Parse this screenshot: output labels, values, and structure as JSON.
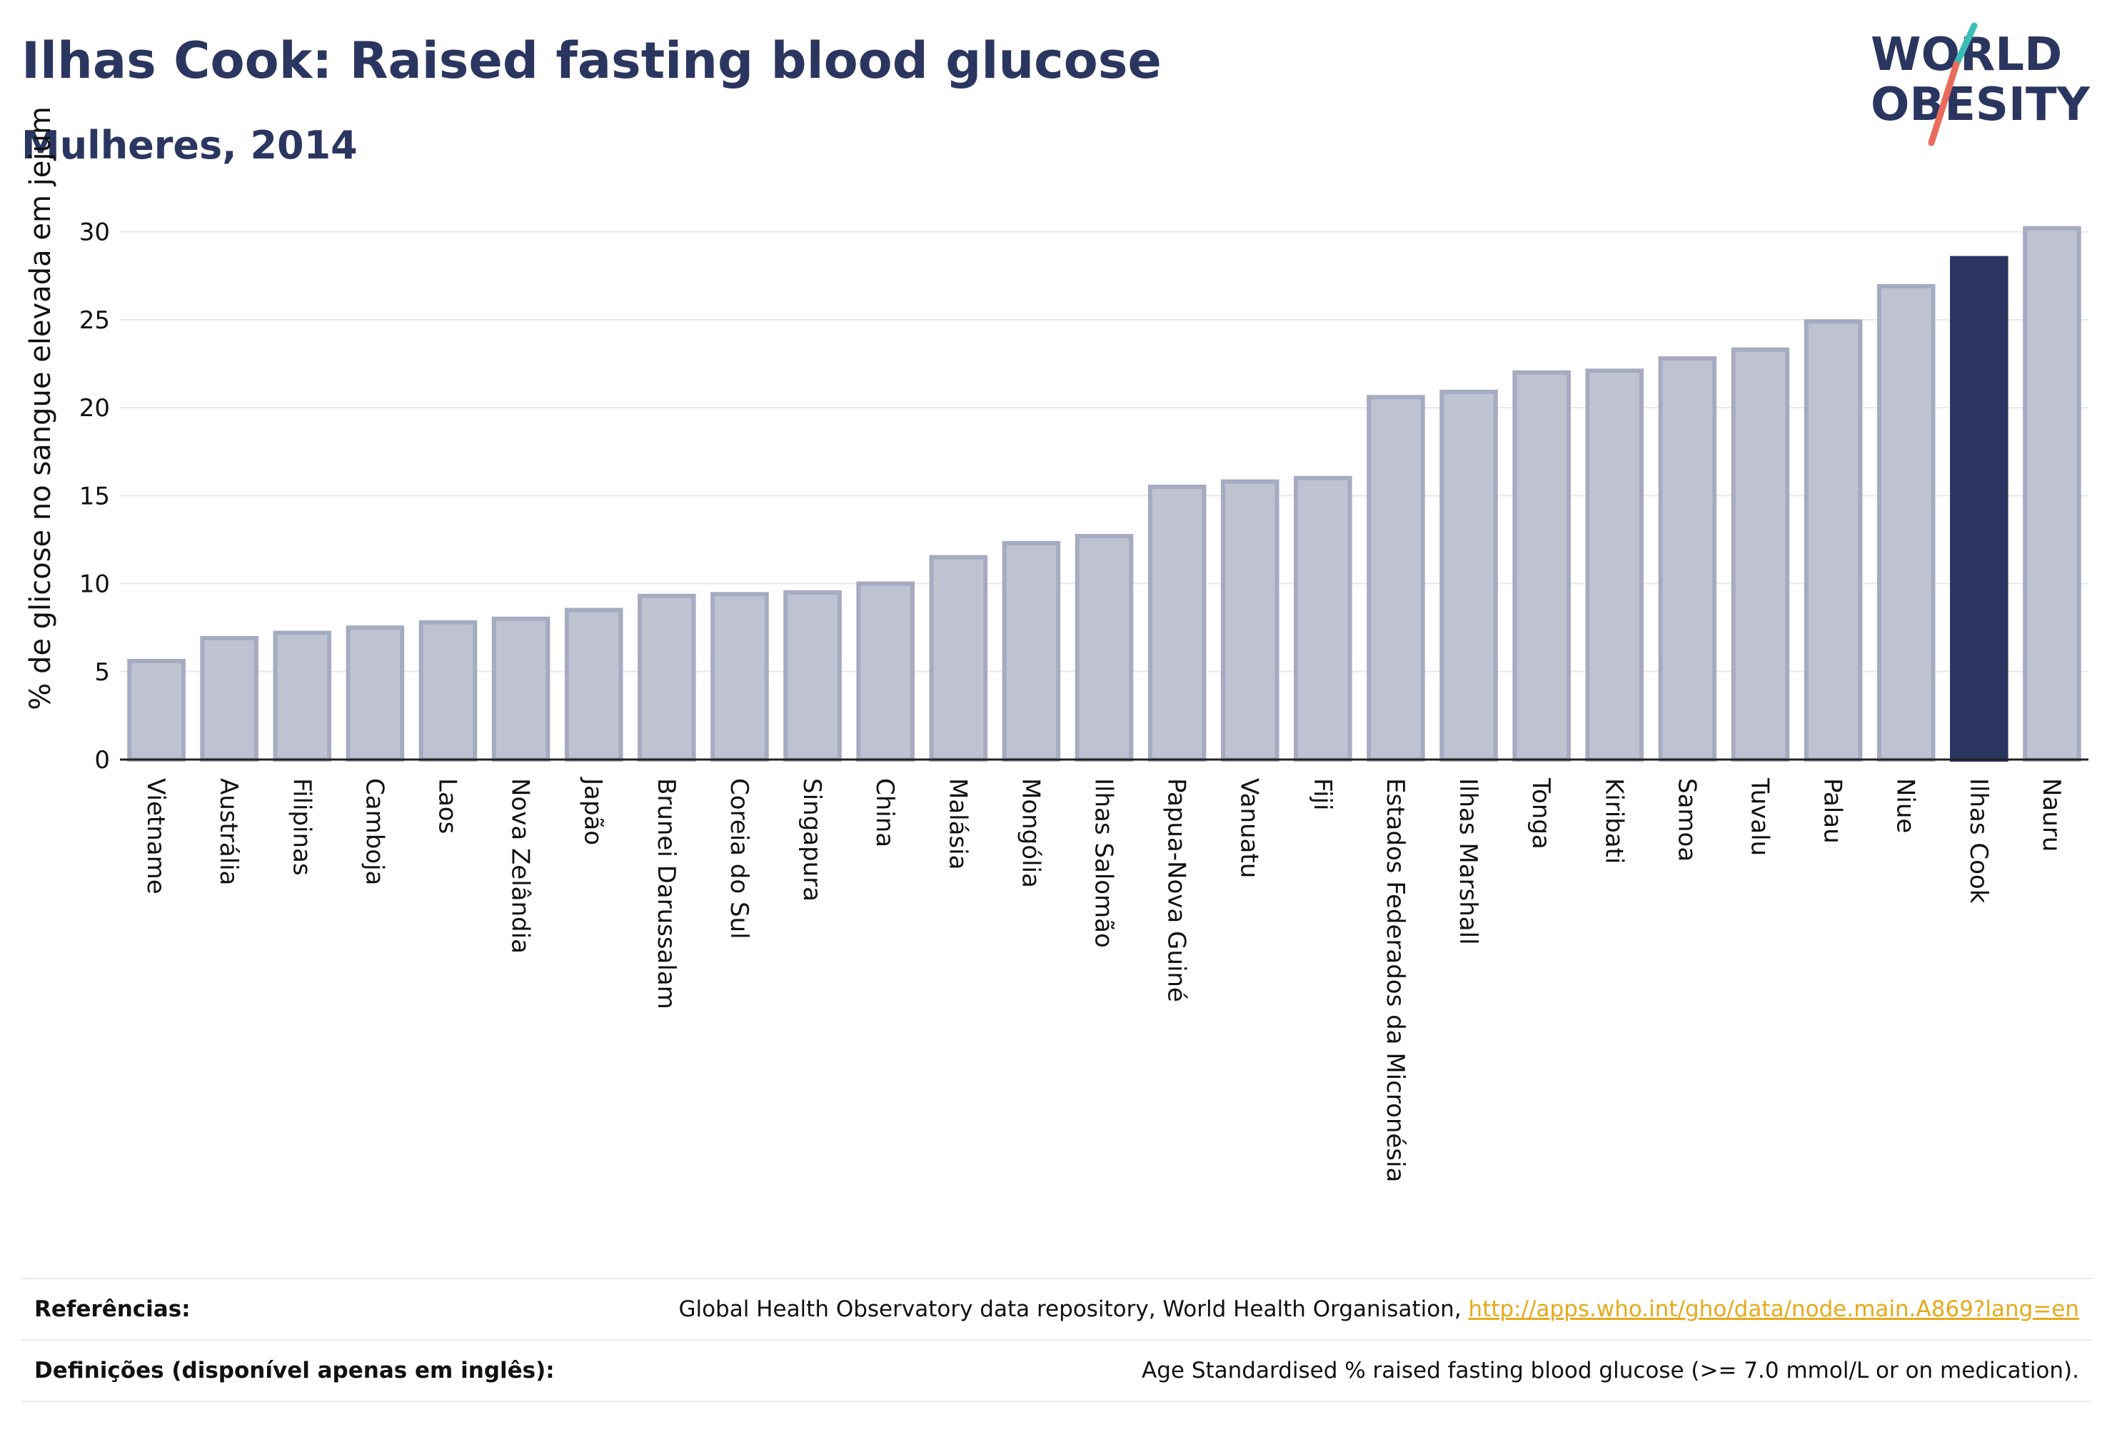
{
  "header": {
    "title": "Ilhas Cook: Raised fasting blood glucose",
    "subtitle": "Mulheres, 2014"
  },
  "logo": {
    "line1": "WORLD",
    "line2": "OBESITY"
  },
  "colors": {
    "bar_fill": "#bfc3d1",
    "bar_stroke": "#a5abc0",
    "highlight": "#2b3660",
    "grid": "#e6e8ef",
    "text": "#111111",
    "logo_teal": "#3bbfb5",
    "logo_coral": "#ea6b5b",
    "link": "#e7a91b"
  },
  "chart_data": {
    "type": "bar",
    "ylabel": "% de glicose no sangue elevada em jejum",
    "ylim": [
      0,
      31
    ],
    "yticks": [
      0,
      5,
      10,
      15,
      20,
      25,
      30
    ],
    "grid": true,
    "highlight_category": "Ilhas Cook",
    "categories": [
      "Vietname",
      "Austrália",
      "Filipinas",
      "Camboja",
      "Laos",
      "Nova Zelândia",
      "Japão",
      "Brunei Darussalam",
      "Coreia do Sul",
      "Singapura",
      "China",
      "Malásia",
      "Mongólia",
      "Ilhas Salomão",
      "Papua-Nova Guiné",
      "Vanuatu",
      "Fiji",
      "Estados Federados da Micronésia",
      "Ilhas Marshall",
      "Tonga",
      "Kiribati",
      "Samoa",
      "Tuvalu",
      "Palau",
      "Niue",
      "Ilhas Cook",
      "Nauru"
    ],
    "values": [
      5.6,
      6.9,
      7.2,
      7.5,
      7.8,
      8.0,
      8.5,
      9.3,
      9.4,
      9.5,
      10.0,
      11.5,
      12.3,
      12.7,
      15.5,
      15.8,
      16.0,
      20.6,
      20.9,
      22.0,
      22.1,
      22.8,
      23.3,
      24.9,
      26.9,
      28.5,
      30.2
    ]
  },
  "references": {
    "sources_label": "Referências:",
    "sources_text": "Global Health Observatory data repository, World Health Organisation, ",
    "sources_link": "http://apps.who.int/gho/data/node.main.A869?lang=en",
    "definitions_label": "Definições (disponível apenas em inglês):",
    "definitions_text": "Age Standardised % raised fasting blood glucose (>= 7.0 mmol/L or on medication)."
  }
}
